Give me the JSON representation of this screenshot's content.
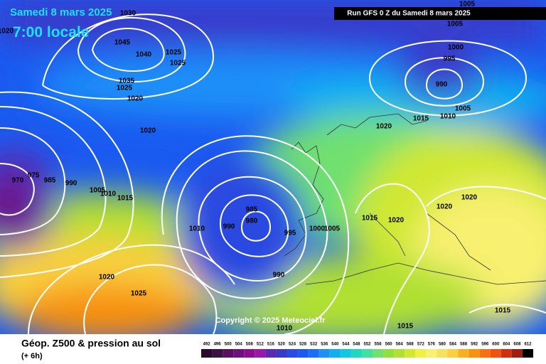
{
  "header": {
    "date": "Samedi 8 mars 2025",
    "time": "7:00 locale",
    "run": "Run GFS 0 Z du Samedi 8 mars 2025"
  },
  "copyright": "Copyright © 2025 Meteociel.fr",
  "legend": {
    "title": "Géop. Z500 & pression au sol",
    "step": "(+ 6h)",
    "scale": [
      492,
      496,
      500,
      504,
      508,
      512,
      516,
      520,
      524,
      528,
      532,
      536,
      540,
      544,
      548,
      552,
      556,
      560,
      564,
      568,
      572,
      576,
      580,
      584,
      588,
      592,
      596,
      600,
      604,
      608,
      612
    ],
    "colors": [
      "#2a0a2a",
      "#3c1040",
      "#5a1060",
      "#70107a",
      "#8a1090",
      "#9a1aa8",
      "#5a2ab0",
      "#3a3ac8",
      "#2a4ae0",
      "#1a5af0",
      "#1a70f8",
      "#1a90f8",
      "#10b0f0",
      "#10c8e0",
      "#20d8c0",
      "#40e0a0",
      "#70e070",
      "#90e040",
      "#b0e030",
      "#d0e830",
      "#f0f040",
      "#f8f070",
      "#f8e060",
      "#f8d040",
      "#f8b020",
      "#f89010",
      "#f87010",
      "#f05010",
      "#d03010",
      "#a02010",
      "#000000"
    ]
  },
  "isobar_labels": [
    1030,
    1045,
    1040,
    1025,
    1025,
    1035,
    1025,
    1020,
    1020,
    1020,
    970,
    975,
    985,
    990,
    1005,
    1010,
    1015,
    1010,
    990,
    985,
    980,
    995,
    1000,
    1005,
    990,
    1020,
    1025,
    1010,
    1005,
    1005,
    1000,
    995,
    990,
    1005,
    1010,
    1015,
    1020,
    1015,
    1020,
    1020,
    1020,
    1015,
    1015
  ]
}
